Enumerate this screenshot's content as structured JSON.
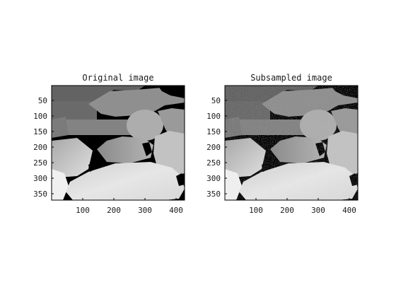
{
  "window": {
    "background": "#ffffff"
  },
  "panels": [
    {
      "title": "Original image",
      "xticks": [
        "100",
        "200",
        "300",
        "400"
      ],
      "yticks": [
        "50",
        "100",
        "150",
        "200",
        "250",
        "300",
        "350"
      ],
      "noise": false
    },
    {
      "title": "Subsampled image",
      "xticks": [
        "100",
        "200",
        "300",
        "400"
      ],
      "yticks": [
        "50",
        "100",
        "150",
        "200",
        "250",
        "300",
        "350"
      ],
      "noise": true
    }
  ],
  "colors": {
    "background_black": "#000000",
    "frame": "#000000",
    "text": "#1a1a1a"
  }
}
